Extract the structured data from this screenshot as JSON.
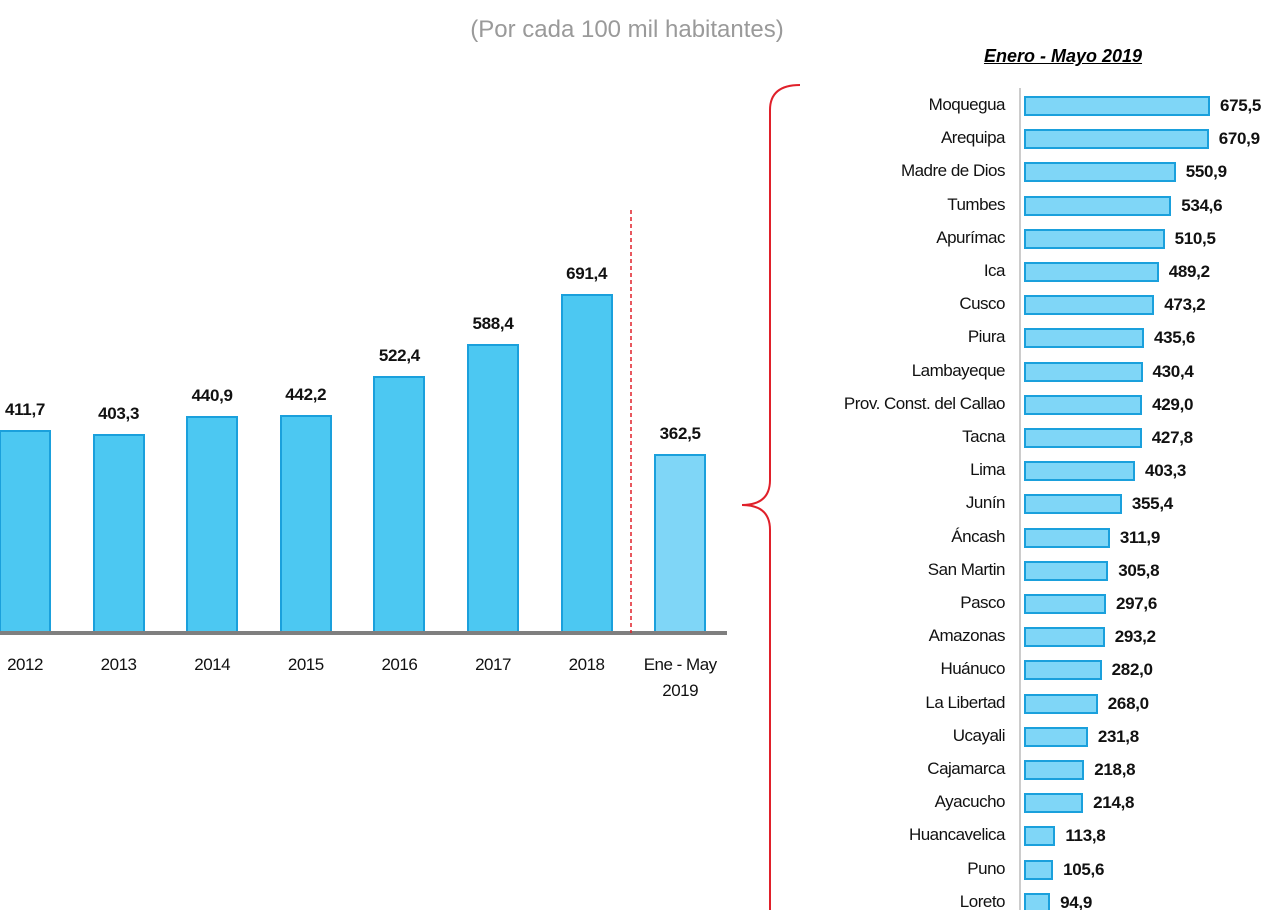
{
  "chart_data": [
    {
      "type": "bar",
      "subtitle": "(Por cada 100 mil habitantes)",
      "categories": [
        "2012",
        "2013",
        "2014",
        "2015",
        "2016",
        "2017",
        "2018",
        "Ene - May 2019"
      ],
      "values": [
        411.7,
        403.3,
        440.9,
        442.2,
        522.4,
        588.4,
        691.4,
        362.5
      ],
      "value_labels": [
        "411,7",
        "403,3",
        "440,9",
        "442,2",
        "522,4",
        "588,4",
        "691,4",
        "362,5"
      ],
      "colors": [
        "#4cc8f2",
        "#4cc8f2",
        "#4cc8f2",
        "#4cc8f2",
        "#4cc8f2",
        "#4cc8f2",
        "#4cc8f2",
        "#7fd6f7"
      ]
    },
    {
      "type": "hbar",
      "title": "Enero - Mayo 2019",
      "categories": [
        "Moquegua",
        "Arequipa",
        "Madre de Dios",
        "Tumbes",
        "Apurímac",
        "Ica",
        "Cusco",
        "Piura",
        "Lambayeque",
        "Prov. Const. del Callao",
        "Tacna",
        "Lima",
        "Junín",
        "Áncash",
        "San Martin",
        "Pasco",
        "Amazonas",
        "Huánuco",
        "La Libertad",
        "Ucayali",
        "Cajamarca",
        "Ayacucho",
        "Huancavelica",
        "Puno",
        "Loreto"
      ],
      "values": [
        675.5,
        670.9,
        550.9,
        534.6,
        510.5,
        489.2,
        473.2,
        435.6,
        430.4,
        429.0,
        427.8,
        403.3,
        355.4,
        311.9,
        305.8,
        297.6,
        293.2,
        282.0,
        268.0,
        231.8,
        218.8,
        214.8,
        113.8,
        105.6,
        94.9
      ],
      "value_labels": [
        "675,5",
        "670,9",
        "550,9",
        "534,6",
        "510,5",
        "489,2",
        "473,2",
        "435,6",
        "430,4",
        "429,0",
        "427,8",
        "403,3",
        "355,4",
        "311,9",
        "305,8",
        "297,6",
        "293,2",
        "282,0",
        "268,0",
        "231,8",
        "218,8",
        "214,8",
        "113,8",
        "105,6",
        "94,9"
      ],
      "color": "#7fd6f7"
    }
  ]
}
